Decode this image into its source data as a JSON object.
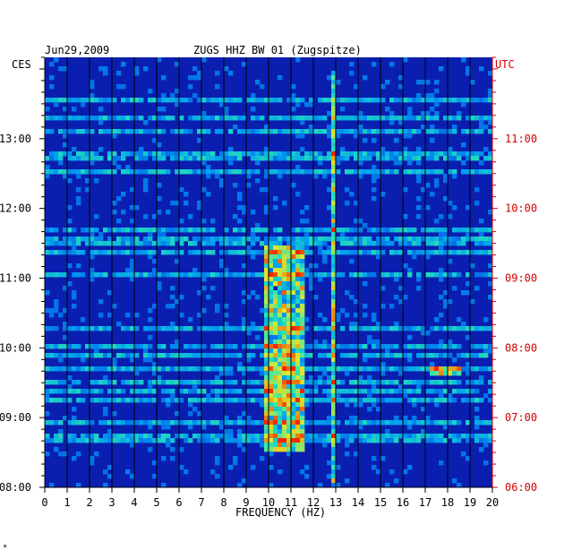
{
  "header": {
    "date": "Jun29,2009",
    "station": "ZUGS HHZ BW 01 (Zugspitze)",
    "left_zone": "CES",
    "right_zone": "UTC"
  },
  "colors": {
    "local_time_labels": "#000000",
    "utc_labels": "#d40000",
    "background_noise": "#0a1fb0",
    "high_energy": "#ff2a00"
  },
  "chart_data": {
    "type": "heatmap",
    "title": "ZUGS HHZ BW 01 (Zugspitze)",
    "date": "Jun29,2009",
    "xlabel": "FREQUENCY (HZ)",
    "xlim": [
      0,
      20
    ],
    "x_ticks": [
      "0",
      "1",
      "2",
      "3",
      "4",
      "5",
      "6",
      "7",
      "8",
      "9",
      "10",
      "11",
      "12",
      "13",
      "14",
      "15",
      "16",
      "17",
      "18",
      "19",
      "20"
    ],
    "left_axis": {
      "zone": "CES",
      "ticks": [
        "13:00",
        "12:00",
        "11:00",
        "10:00",
        "09:00",
        "08:00"
      ]
    },
    "right_axis": {
      "zone": "UTC",
      "ticks": [
        "11:00",
        "10:00",
        "09:00",
        "08:00",
        "07:00",
        "06:00"
      ]
    },
    "time_range_utc": [
      "06:00",
      "12:10"
    ],
    "colormap": [
      "dark blue",
      "blue",
      "cyan",
      "green",
      "yellow",
      "red"
    ],
    "features": [
      {
        "description": "persistent energy band",
        "freq_hz": [
          9.8,
          11.5
        ],
        "time_utc": [
          "06:30",
          "09:30"
        ]
      },
      {
        "description": "narrow line",
        "freq_hz": [
          12.9,
          13.1
        ],
        "time_utc": [
          "06:00",
          "12:00"
        ]
      },
      {
        "description": "high energy patch",
        "freq_hz": [
          17.2,
          18.5
        ],
        "time_utc": [
          "07:35",
          "07:45"
        ]
      }
    ]
  }
}
